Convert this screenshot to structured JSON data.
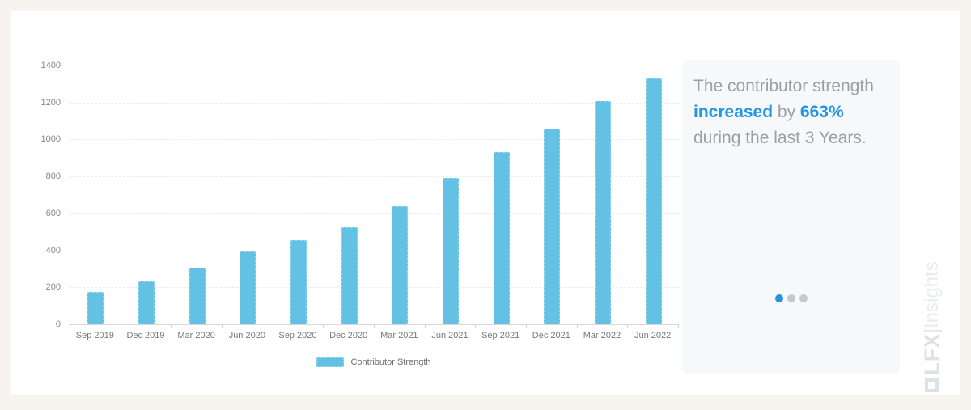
{
  "chart_data": {
    "type": "bar",
    "title": "",
    "categories": [
      "Sep 2019",
      "Dec 2019",
      "Mar 2020",
      "Jun 2020",
      "Sep 2020",
      "Dec 2020",
      "Mar 2021",
      "Jun 2021",
      "Sep 2021",
      "Dec 2021",
      "Mar 2022",
      "Jun 2022"
    ],
    "values": [
      174,
      234,
      306,
      393,
      456,
      524,
      638,
      791,
      933,
      1059,
      1206,
      1328
    ],
    "series_name": "Contributor Strength",
    "legend": [
      "Contributor Strength"
    ],
    "xlabel": "",
    "ylabel": "",
    "ylim": [
      0,
      1400
    ],
    "yticks": [
      0,
      200,
      400,
      600,
      800,
      1000,
      1200,
      1400
    ],
    "grid": true,
    "legend_position": "bottom",
    "bar_color": "#63c1e4"
  },
  "panel": {
    "lines": [
      {
        "parts": [
          {
            "text": "The contributor strength",
            "style": "muted"
          }
        ]
      },
      {
        "parts": [
          {
            "text": "increased",
            "style": "accent"
          },
          {
            "text": " by ",
            "style": "muted"
          },
          {
            "text": "663%",
            "style": "accent"
          }
        ]
      },
      {
        "parts": [
          {
            "text": "during the last 3 Years.",
            "style": "muted"
          }
        ]
      }
    ],
    "accent_color": "#2095e2",
    "carousel": {
      "count": 3,
      "active": 0
    }
  },
  "branding": {
    "logo_text": "LFX",
    "logo_divider": "|",
    "logo_sub": "Insights"
  }
}
